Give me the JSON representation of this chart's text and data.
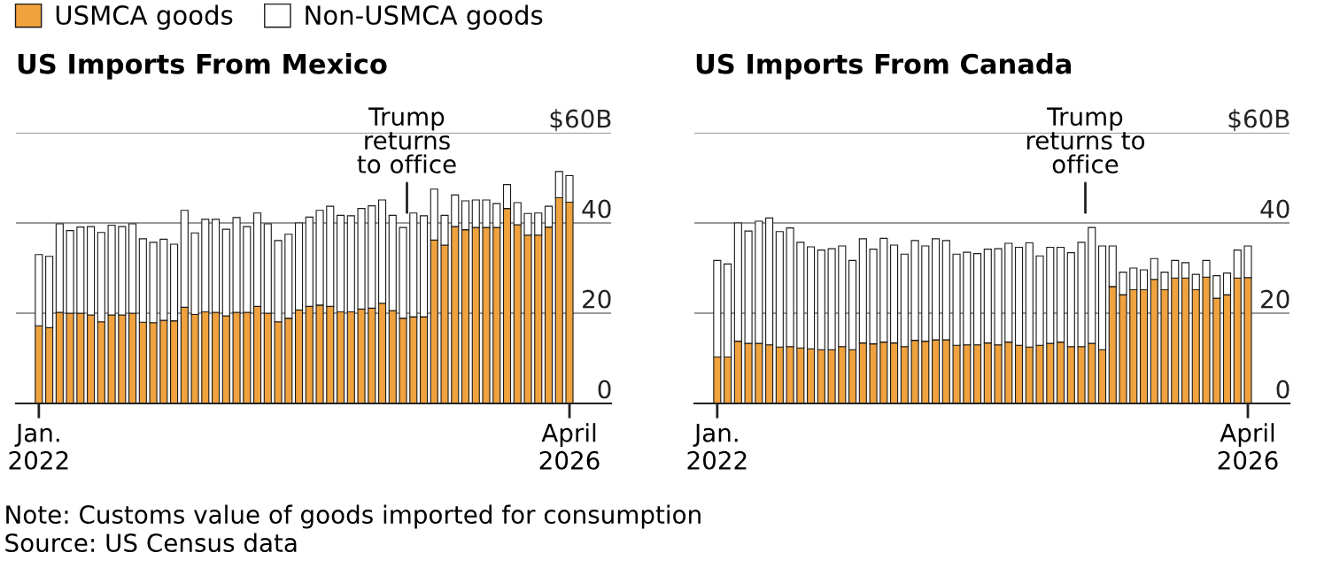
{
  "chart_data": [
    {
      "type": "bar",
      "title": "US Imports From Mexico",
      "stacked": true,
      "legend": "top left",
      "grid": "y",
      "categories": [
        "Jan.\n2022",
        null,
        null,
        null,
        null,
        null,
        null,
        null,
        null,
        null,
        null,
        null,
        null,
        null,
        null,
        null,
        null,
        null,
        null,
        null,
        null,
        null,
        null,
        null,
        null,
        null,
        null,
        null,
        null,
        null,
        null,
        null,
        null,
        null,
        null,
        null,
        null,
        null,
        null,
        null,
        null,
        null,
        null,
        null,
        null,
        null,
        null,
        null,
        null,
        null,
        null,
        "April\n2026"
      ],
      "ylim": [
        0,
        60
      ],
      "yticks": [
        0,
        20,
        40,
        {
          "value": 60,
          "label": "$60B"
        }
      ],
      "series": [
        {
          "name": "USMCA goods",
          "color": "#f0a23e",
          "values": [
            17.2,
            16.8,
            20.2,
            20,
            20,
            19.6,
            18.1,
            19.6,
            19.6,
            20,
            18,
            17.9,
            18.4,
            18.3,
            21.3,
            19.7,
            20.3,
            20.2,
            19.4,
            20.2,
            20.2,
            21.5,
            20,
            18.1,
            18.9,
            20.7,
            21.5,
            21.8,
            21.5,
            20.3,
            20.3,
            20.9,
            21.1,
            22.2,
            20.6,
            18.9,
            19.2,
            19.2,
            36.2,
            35.1,
            39.2,
            38.5,
            39,
            39,
            39,
            43.2,
            39.6,
            37.3,
            37.3,
            39.1,
            45.6,
            44.6
          ]
        },
        {
          "name": "Non-USMCA goods",
          "color": "#ffffff",
          "values": [
            15.8,
            15.8,
            19.6,
            18.3,
            19.1,
            19.6,
            19.8,
            19.9,
            19.6,
            19.8,
            18.5,
            17.8,
            18,
            17,
            21.5,
            18.1,
            20.5,
            20.6,
            19.2,
            21,
            19,
            20.7,
            19.8,
            18,
            18.6,
            19.3,
            19.8,
            21,
            22.2,
            21.4,
            21.3,
            22.3,
            22.7,
            22.9,
            21.1,
            20.1,
            23,
            22.4,
            11.3,
            6.6,
            7,
            6.4,
            6.1,
            6.1,
            5.3,
            5.3,
            4.9,
            4.8,
            4.9,
            4.6,
            5.8,
            5.9
          ]
        }
      ],
      "annotations": [
        "Trump\nreturns\nto office",
        "Note: Customs value of goods imported for consumption",
        "Source: US Census data"
      ]
    },
    {
      "type": "bar",
      "title": "US Imports From Canada",
      "stacked": true,
      "grid": "y",
      "categories": [
        "Jan.\n2022",
        null,
        null,
        null,
        null,
        null,
        null,
        null,
        null,
        null,
        null,
        null,
        null,
        null,
        null,
        null,
        null,
        null,
        null,
        null,
        null,
        null,
        null,
        null,
        null,
        null,
        null,
        null,
        null,
        null,
        null,
        null,
        null,
        null,
        null,
        null,
        null,
        null,
        null,
        null,
        null,
        null,
        null,
        null,
        null,
        null,
        null,
        null,
        null,
        null,
        null,
        "April\n2026"
      ],
      "ylim": [
        0,
        60
      ],
      "yticks": [
        0,
        20,
        40,
        {
          "value": 60,
          "label": "$60B"
        }
      ],
      "series": [
        {
          "name": "USMCA goods",
          "color": "#f0a23e",
          "values": [
            10.3,
            10.3,
            13.8,
            13.3,
            13.3,
            13,
            12.5,
            12.6,
            12.3,
            12.1,
            11.9,
            11.9,
            12.6,
            11.9,
            13.4,
            13.2,
            13.6,
            13.4,
            12.6,
            14,
            13.8,
            14.1,
            14.1,
            12.9,
            13,
            13,
            13.4,
            13,
            13.6,
            12.9,
            12.5,
            12.9,
            13.3,
            13.6,
            12.6,
            12.6,
            13.3,
            11.9,
            25.9,
            24.1,
            25.2,
            25.2,
            27.5,
            25.2,
            27.8,
            27.8,
            25.2,
            28,
            23.3,
            24.1,
            27.8,
            27.9
          ]
        },
        {
          "name": "Non-USMCA goods",
          "color": "#ffffff",
          "values": [
            21.4,
            20.6,
            26.2,
            24.9,
            27.1,
            28.1,
            25.6,
            26.3,
            23.4,
            22.6,
            22.1,
            22.4,
            22.3,
            19.8,
            23.1,
            21,
            23,
            21.7,
            20.5,
            22.1,
            21.1,
            22.4,
            22,
            20.2,
            20.5,
            20.2,
            20.8,
            21.3,
            21.9,
            21.7,
            23.1,
            19.8,
            21.3,
            21,
            20.8,
            23.1,
            25.7,
            23,
            9,
            5,
            4.8,
            4.4,
            4.6,
            3.9,
            3.9,
            3.4,
            3.4,
            3.7,
            5,
            4.8,
            6.2,
            7
          ]
        }
      ],
      "annotations": [
        "Trump\nreturns to\noffice"
      ]
    }
  ]
}
